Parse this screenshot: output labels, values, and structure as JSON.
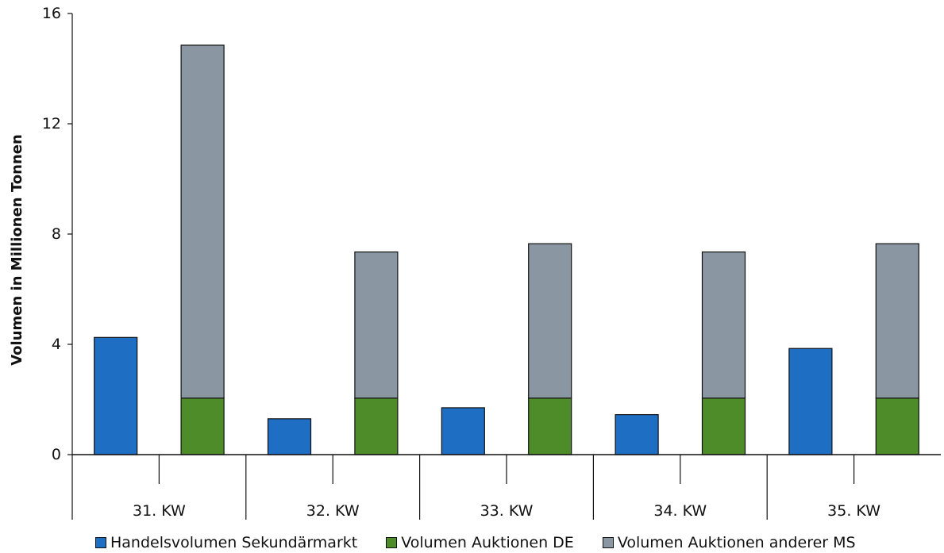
{
  "chart_data": {
    "type": "bar",
    "stacked_groups": true,
    "categories": [
      "31. KW",
      "32. KW",
      "33. KW",
      "34. KW",
      "35. KW"
    ],
    "ylabel": "Volumen in Millionen Tonnen",
    "ylim": [
      0,
      16
    ],
    "yticks": [
      "0",
      "4",
      "8",
      "12",
      "16"
    ],
    "grid": false,
    "legend_position": "bottom",
    "series": [
      {
        "name": "Handelsvolumen Sekundärmarkt",
        "color": "#1e6ec4",
        "bar": "left",
        "values": [
          4.25,
          1.3,
          1.7,
          1.45,
          3.85
        ]
      },
      {
        "name": "Volumen Auktionen DE",
        "color": "#4e8c2a",
        "bar": "right",
        "values": [
          2.05,
          2.05,
          2.05,
          2.05,
          2.05
        ]
      },
      {
        "name": "Volumen Auktionen anderer MS",
        "color": "#8a96a2",
        "bar": "right",
        "stacked_on": "Volumen Auktionen DE",
        "values": [
          12.8,
          5.3,
          5.6,
          5.3,
          5.6
        ]
      }
    ]
  }
}
